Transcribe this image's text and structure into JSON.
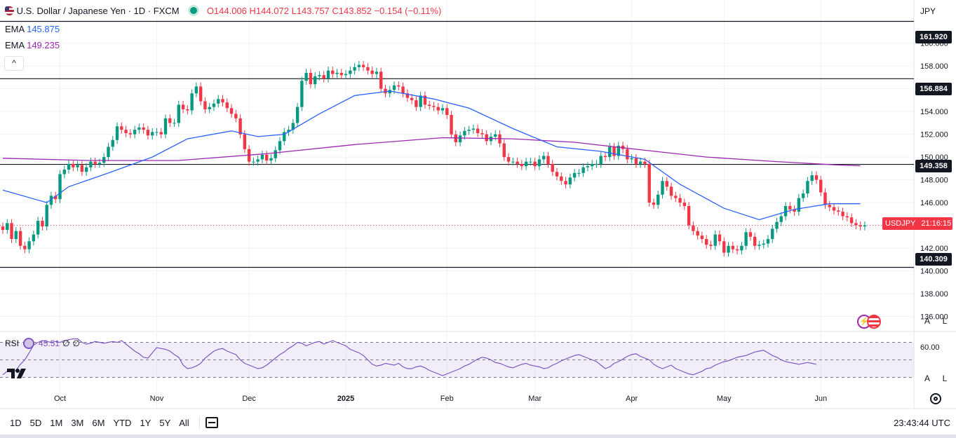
{
  "header": {
    "symbol": "U.S. Dollar / Japanese Yen · 1D · FXCM",
    "open": "O144.006",
    "high": "H144.072",
    "low": "L143.757",
    "close": "C143.852",
    "change": "−0.154 (−0.11%)"
  },
  "indicators": [
    {
      "name": "EMA",
      "value": "145.875",
      "color": "#2962ff"
    },
    {
      "name": "EMA",
      "value": "149.235",
      "color": "#9c27b0"
    }
  ],
  "collapse_label": "^",
  "currency": "JPY",
  "price_tags": {
    "t1": "161.920",
    "t2": "156.884",
    "t3": "149.358",
    "t4": "140.309"
  },
  "current": {
    "symbol": "USDJPY",
    "countdown": "21:16:15"
  },
  "rsi": {
    "name": "RSI",
    "value": "45.51",
    "extra1": "∅",
    "extra2": "∅",
    "level_label": "60.00"
  },
  "scale_buttons": {
    "auto": "A",
    "log": "L"
  },
  "timeframes": [
    "1D",
    "5D",
    "1M",
    "3M",
    "6M",
    "YTD",
    "1Y",
    "5Y",
    "All"
  ],
  "clock": "23:43:44 UTC",
  "colors": {
    "up": "#089981",
    "down": "#f23645",
    "ema_fast": "#2962ff",
    "ema_slow": "#9c27b0",
    "rsi": "#7e57c2"
  },
  "chart_data": {
    "type": "candlestick",
    "y_ticks": [
      136,
      138,
      140,
      142,
      144,
      146,
      148,
      150,
      152,
      154,
      156,
      158,
      160
    ],
    "y_tick_labels": [
      "136.000",
      "138.000",
      "140.000",
      "142.000",
      "144.000",
      "146.000",
      "148.000",
      "150.000",
      "152.000",
      "154.000",
      "156.000",
      "158.000",
      "160.000"
    ],
    "ylim": [
      134.8,
      163.8
    ],
    "x_labels": [
      {
        "label": "Oct",
        "index": 13
      },
      {
        "label": "Nov",
        "index": 35
      },
      {
        "label": "Dec",
        "index": 56
      },
      {
        "label": "2025",
        "index": 78
      },
      {
        "label": "Feb",
        "index": 101
      },
      {
        "label": "Mar",
        "index": 121
      },
      {
        "label": "Apr",
        "index": 143
      },
      {
        "label": "May",
        "index": 164
      },
      {
        "label": "Jun",
        "index": 186
      }
    ],
    "horizontal_levels": [
      161.92,
      156.884,
      149.358,
      140.309
    ],
    "closes": [
      143.6,
      144.2,
      142.8,
      143.5,
      142.2,
      141.9,
      142.6,
      143.2,
      144.4,
      143.9,
      145.8,
      146.6,
      146.3,
      148.5,
      148.9,
      149.4,
      149.1,
      149.3,
      148.7,
      149.1,
      149.6,
      149.4,
      149.5,
      150.0,
      150.9,
      151.5,
      152.7,
      152.4,
      152.1,
      152.0,
      152.4,
      152.6,
      152.4,
      151.9,
      152.2,
      152.2,
      152.0,
      153.4,
      153.0,
      153.0,
      154.6,
      154.2,
      154.1,
      155.6,
      156.2,
      154.9,
      154.2,
      154.4,
      154.7,
      155.1,
      154.8,
      154.3,
      153.8,
      153.4,
      152.0,
      150.7,
      149.6,
      149.6,
      149.8,
      150.2,
      149.7,
      149.9,
      150.6,
      151.4,
      152.2,
      152.4,
      153.0,
      154.4,
      156.7,
      157.4,
      156.4,
      157.1,
      157.2,
      156.9,
      157.6,
      157.3,
      157.4,
      157.2,
      157.3,
      157.6,
      157.9,
      158.1,
      157.9,
      157.6,
      157.3,
      157.5,
      156.0,
      155.6,
      155.9,
      156.3,
      156.2,
      155.6,
      155.2,
      155.0,
      154.4,
      155.4,
      154.6,
      154.5,
      154.4,
      154.1,
      154.3,
      153.7,
      152.0,
      151.3,
      151.9,
      152.3,
      152.4,
      152.5,
      152.1,
      152.0,
      151.4,
      151.8,
      152.0,
      151.2,
      150.0,
      149.6,
      149.6,
      149.4,
      149.2,
      149.6,
      149.6,
      149.2,
      149.8,
      150.1,
      149.4,
      148.7,
      148.3,
      147.9,
      147.6,
      148.2,
      148.6,
      148.6,
      149.1,
      149.2,
      149.4,
      149.4,
      150.1,
      150.0,
      150.9,
      150.1,
      151.0,
      150.7,
      149.8,
      149.9,
      149.4,
      149.6,
      149.4,
      146.0,
      145.8,
      146.7,
      147.9,
      147.4,
      146.6,
      146.4,
      146.0,
      145.7,
      144.0,
      143.5,
      143.1,
      142.8,
      142.3,
      142.2,
      143.2,
      142.6,
      141.6,
      142.2,
      141.9,
      141.8,
      142.2,
      143.4,
      143.0,
      142.2,
      142.3,
      142.4,
      142.8,
      143.7,
      144.3,
      144.8,
      145.7,
      145.4,
      145.2,
      146.4,
      146.8,
      147.9,
      148.4,
      148.0,
      146.9,
      145.8,
      145.6,
      145.3,
      145.2,
      144.8,
      144.7,
      144.2,
      144.0,
      143.9,
      144.0
    ],
    "ema_fast": {
      "name": "EMA",
      "last": 145.875,
      "points": [
        [
          0,
          147.1
        ],
        [
          10,
          146.0
        ],
        [
          15,
          147.4
        ],
        [
          24,
          148.6
        ],
        [
          34,
          150.0
        ],
        [
          42,
          151.6
        ],
        [
          52,
          152.3
        ],
        [
          58,
          151.8
        ],
        [
          64,
          152.0
        ],
        [
          72,
          153.8
        ],
        [
          80,
          155.4
        ],
        [
          88,
          155.8
        ],
        [
          98,
          155.1
        ],
        [
          106,
          154.3
        ],
        [
          116,
          152.5
        ],
        [
          126,
          150.9
        ],
        [
          136,
          150.5
        ],
        [
          146,
          149.8
        ],
        [
          154,
          147.6
        ],
        [
          164,
          145.5
        ],
        [
          172,
          144.5
        ],
        [
          180,
          145.4
        ],
        [
          188,
          145.9
        ],
        [
          195,
          145.9
        ]
      ]
    },
    "ema_slow": {
      "name": "EMA",
      "last": 149.235,
      "points": [
        [
          0,
          149.9
        ],
        [
          20,
          149.7
        ],
        [
          40,
          149.7
        ],
        [
          60,
          150.3
        ],
        [
          80,
          151.1
        ],
        [
          100,
          151.7
        ],
        [
          116,
          151.6
        ],
        [
          130,
          151.3
        ],
        [
          146,
          150.6
        ],
        [
          160,
          150.0
        ],
        [
          176,
          149.6
        ],
        [
          190,
          149.3
        ],
        [
          195,
          149.235
        ]
      ]
    },
    "rsi": {
      "ylim": [
        20,
        80
      ],
      "level": 60,
      "last": 45.51,
      "values": [
        33,
        37,
        36,
        38,
        45,
        50,
        58,
        67,
        70,
        72,
        71,
        70,
        71,
        70,
        72,
        73,
        74,
        74,
        70,
        68,
        69,
        71,
        70,
        69,
        70,
        71,
        70,
        72,
        68,
        64,
        60,
        57,
        53,
        52,
        58,
        64,
        63,
        62,
        60,
        56,
        53,
        44,
        40,
        41,
        43,
        46,
        52,
        56,
        60,
        62,
        63,
        60,
        58,
        56,
        50,
        46,
        44,
        42,
        40,
        41,
        44,
        48,
        52,
        56,
        59,
        63,
        66,
        70,
        69,
        66,
        68,
        70,
        71,
        68,
        70,
        72,
        70,
        68,
        66,
        62,
        60,
        58,
        55,
        50,
        45,
        43,
        44,
        46,
        45,
        44,
        46,
        42,
        40,
        40,
        42,
        43,
        41,
        38,
        36,
        34,
        32,
        34,
        36,
        38,
        40,
        43,
        45,
        48,
        51,
        53,
        52,
        50,
        47,
        46,
        44,
        42,
        41,
        43,
        45,
        46,
        44,
        43,
        42,
        40,
        41,
        44,
        46,
        49,
        51,
        53,
        55,
        56,
        54,
        52,
        50,
        48,
        44,
        40,
        42,
        46,
        48,
        51,
        54,
        56,
        57,
        54,
        52,
        50,
        45,
        42,
        40,
        42,
        44,
        40,
        38,
        36,
        34,
        33,
        35,
        37,
        40,
        41,
        44,
        46,
        48,
        49,
        51,
        53,
        54,
        55,
        57,
        59,
        60,
        61,
        58,
        55,
        53,
        50,
        48,
        47,
        46,
        45,
        46,
        47,
        46,
        45
      ]
    }
  }
}
